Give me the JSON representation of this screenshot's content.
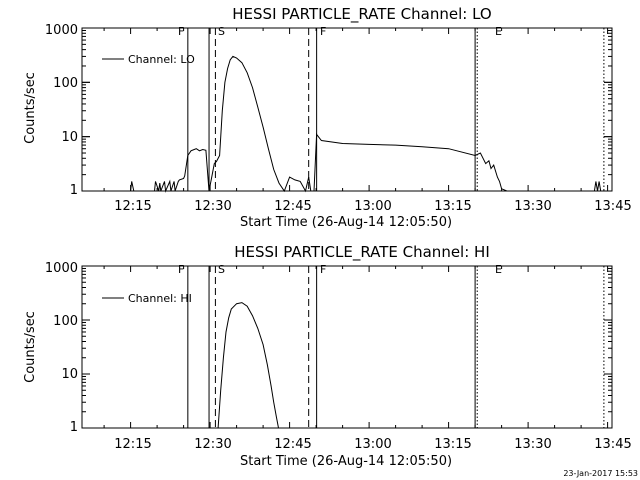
{
  "charts": [
    {
      "title": "HESSI PARTICLE_RATE Channel: LO",
      "ylabel": "Counts/sec",
      "xlabel": "Start Time (26-Aug-14 12:05:50)",
      "legend": "Channel: LO",
      "yticks": [
        "1",
        "10",
        "100",
        "1000"
      ],
      "xticks": [
        "12:15",
        "12:30",
        "12:45",
        "13:00",
        "13:15",
        "13:30",
        "13:45"
      ]
    },
    {
      "title": "HESSI PARTICLE_RATE Channel: HI",
      "ylabel": "Counts/sec",
      "xlabel": "Start Time (26-Aug-14 12:05:50)",
      "legend": "Channel: HI",
      "yticks": [
        "1",
        "10",
        "100",
        "1000"
      ],
      "xticks": [
        "12:15",
        "12:30",
        "12:45",
        "13:00",
        "13:15",
        "13:30",
        "13:45"
      ]
    }
  ],
  "markers": [
    "F",
    "S",
    "F",
    "E"
  ],
  "timestamp": "23-Jan-2017 15:53",
  "chart_data": [
    {
      "type": "line",
      "title": "HESSI PARTICLE_RATE Channel: LO",
      "xlabel": "Start Time (26-Aug-14 12:05:50)",
      "ylabel": "Counts/sec",
      "x_unit": "minutes after 12:00",
      "xlim": [
        5.83,
        105.83
      ],
      "ylim": [
        1,
        1000
      ],
      "yscale": "log",
      "legend": "top-left",
      "series": [
        {
          "name": "Channel: LO",
          "x": [
            15.0,
            15.2,
            15.6,
            19.5,
            19.7,
            20.3,
            20.5,
            20.7,
            21.4,
            21.6,
            22.4,
            22.6,
            23.2,
            23.4,
            24.0,
            24.2,
            25.0,
            25.2,
            25.8,
            26.4,
            27.0,
            27.4,
            28.0,
            28.6,
            29.2,
            29.8,
            30.2,
            30.8,
            31.2,
            31.8,
            32.3,
            32.8,
            33.3,
            33.8,
            34.3,
            35.0,
            36.0,
            37.0,
            38.0,
            39.0,
            40.0,
            41.0,
            42.0,
            43.0,
            44.0,
            45.0,
            46.0,
            47.0,
            48.0,
            48.6,
            49.0,
            49.6,
            50.1,
            51.0,
            55.0,
            60.0,
            65.0,
            70.0,
            75.0,
            80.0,
            81.0,
            82.0,
            82.6,
            83.0,
            83.5,
            84.2,
            84.6,
            85.0,
            86.0,
            102.5,
            102.8,
            103.1,
            103.4,
            103.7
          ],
          "y": [
            1,
            1.5,
            1,
            1,
            1.5,
            1,
            1.4,
            1,
            1.5,
            1,
            1.5,
            1,
            1.5,
            1,
            1.5,
            1.6,
            1.7,
            1.9,
            4.5,
            5.5,
            5.8,
            6.0,
            5.5,
            5.8,
            5.6,
            1,
            1.6,
            3.2,
            3.5,
            4.5,
            30,
            100,
            180,
            260,
            300,
            280,
            230,
            150,
            80,
            35,
            15,
            6,
            2.5,
            1.4,
            1,
            1.8,
            1.6,
            1.5,
            1,
            1.8,
            1,
            1,
            11,
            8.5,
            7.5,
            7.2,
            7.0,
            6.5,
            6.0,
            4.5,
            5.0,
            3.2,
            3.6,
            2.6,
            3.0,
            1.8,
            1.5,
            1.1,
            1,
            1,
            1.5,
            1,
            1.5,
            1
          ]
        }
      ],
      "vlines": [
        {
          "x": 25.8,
          "style": "solid",
          "label": "F"
        },
        {
          "x": 29.8,
          "style": "solid"
        },
        {
          "x": 31.0,
          "style": "dashed",
          "label": "S"
        },
        {
          "x": 48.6,
          "style": "dashed"
        },
        {
          "x": 50.1,
          "style": "solid",
          "label": "F"
        },
        {
          "x": 80.0,
          "style": "solid",
          "label": "E"
        },
        {
          "x": 80.4,
          "style": "dotted"
        },
        {
          "x": 104.3,
          "style": "dotted"
        }
      ]
    },
    {
      "type": "line",
      "title": "HESSI PARTICLE_RATE Channel: HI",
      "xlabel": "Start Time (26-Aug-14 12:05:50)",
      "ylabel": "Counts/sec",
      "x_unit": "minutes after 12:00",
      "xlim": [
        5.83,
        105.83
      ],
      "ylim": [
        1,
        1000
      ],
      "yscale": "log",
      "legend": "top-left",
      "series": [
        {
          "name": "Channel: HI",
          "x": [
            31.5,
            32.0,
            32.5,
            33.0,
            33.5,
            34.0,
            35.0,
            36.0,
            37.0,
            38.0,
            39.0,
            40.0,
            40.8,
            41.5,
            42.0,
            42.5,
            42.9
          ],
          "y": [
            1,
            5,
            20,
            60,
            110,
            160,
            200,
            210,
            180,
            120,
            70,
            35,
            15,
            6,
            3,
            1.6,
            1
          ]
        }
      ],
      "vlines": [
        {
          "x": 25.8,
          "style": "solid",
          "label": "F"
        },
        {
          "x": 29.8,
          "style": "solid"
        },
        {
          "x": 31.0,
          "style": "dashed",
          "label": "S"
        },
        {
          "x": 48.6,
          "style": "dashed"
        },
        {
          "x": 50.1,
          "style": "solid",
          "label": "F"
        },
        {
          "x": 80.0,
          "style": "solid",
          "label": "E"
        },
        {
          "x": 80.4,
          "style": "dotted"
        },
        {
          "x": 104.3,
          "style": "dotted"
        }
      ]
    }
  ]
}
